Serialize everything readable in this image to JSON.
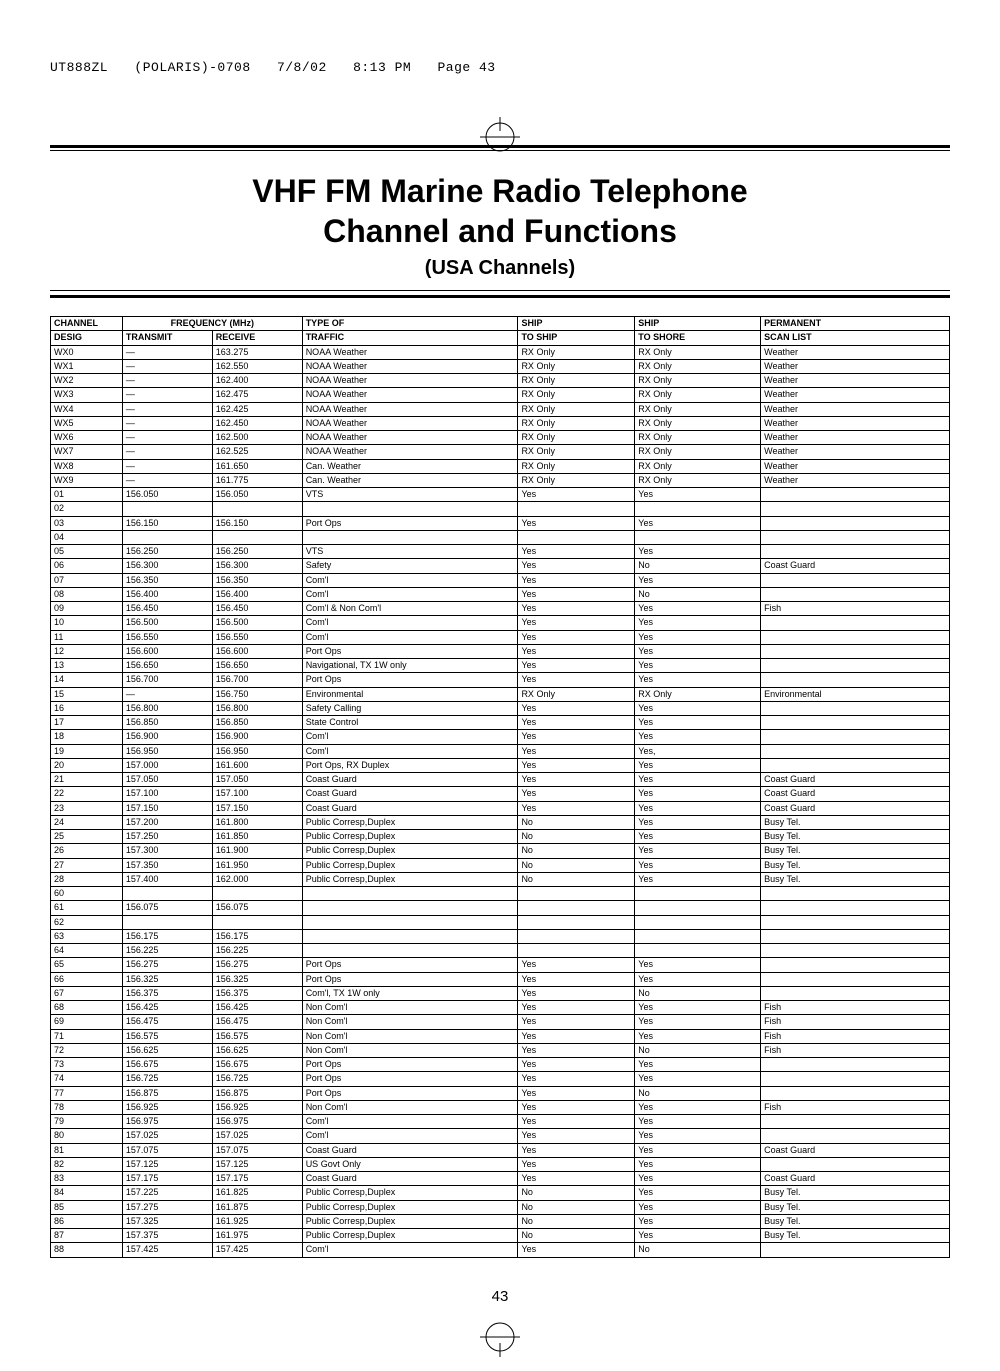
{
  "runheader": {
    "job": "UT888ZL",
    "project": "(POLARIS)-0708",
    "date": "7/8/02",
    "time": "8:13 PM",
    "page": "Page 43"
  },
  "title": {
    "line1": "VHF FM Marine Radio Telephone",
    "line2": "Channel and Functions",
    "sub": "(USA Channels)"
  },
  "columns": {
    "channel": "CHANNEL",
    "desig": "DESIG",
    "freq": "FREQUENCY (MHz)",
    "transmit": "TRANSMIT",
    "receive": "RECEIVE",
    "typeof": "TYPE OF",
    "traffic": "TRAFFIC",
    "ship1": "SHIP",
    "toship": "TO SHIP",
    "ship2": "SHIP",
    "toshore": "TO SHORE",
    "perm": "PERMANENT",
    "scan": "SCAN LIST"
  },
  "rows": [
    {
      "d": "WX0",
      "tx": "—",
      "rx": "163.275",
      "tr": "NOAA Weather",
      "sh": "RX Only",
      "so": "RX Only",
      "sc": "Weather"
    },
    {
      "d": "WX1",
      "tx": "—",
      "rx": "162.550",
      "tr": "NOAA Weather",
      "sh": "RX Only",
      "so": "RX Only",
      "sc": "Weather"
    },
    {
      "d": "WX2",
      "tx": "—",
      "rx": "162.400",
      "tr": "NOAA Weather",
      "sh": "RX Only",
      "so": "RX Only",
      "sc": "Weather"
    },
    {
      "d": "WX3",
      "tx": "—",
      "rx": "162.475",
      "tr": "NOAA Weather",
      "sh": "RX Only",
      "so": "RX Only",
      "sc": "Weather"
    },
    {
      "d": "WX4",
      "tx": "—",
      "rx": "162.425",
      "tr": "NOAA Weather",
      "sh": "RX Only",
      "so": "RX Only",
      "sc": "Weather"
    },
    {
      "d": "WX5",
      "tx": "—",
      "rx": "162.450",
      "tr": "NOAA Weather",
      "sh": "RX Only",
      "so": "RX Only",
      "sc": "Weather"
    },
    {
      "d": "WX6",
      "tx": "—",
      "rx": "162.500",
      "tr": "NOAA Weather",
      "sh": "RX Only",
      "so": "RX Only",
      "sc": "Weather"
    },
    {
      "d": "WX7",
      "tx": "—",
      "rx": "162.525",
      "tr": "NOAA Weather",
      "sh": "RX Only",
      "so": "RX Only",
      "sc": "Weather"
    },
    {
      "d": "WX8",
      "tx": "—",
      "rx": "161.650",
      "tr": "Can. Weather",
      "sh": "RX Only",
      "so": "RX Only",
      "sc": "Weather"
    },
    {
      "d": "WX9",
      "tx": "—",
      "rx": "161.775",
      "tr": "Can. Weather",
      "sh": "RX Only",
      "so": "RX Only",
      "sc": "Weather"
    },
    {
      "d": "01",
      "tx": "156.050",
      "rx": "156.050",
      "tr": "VTS",
      "sh": "Yes",
      "so": "Yes",
      "sc": ""
    },
    {
      "d": "02",
      "tx": "",
      "rx": "",
      "tr": "",
      "sh": "",
      "so": "",
      "sc": ""
    },
    {
      "d": "03",
      "tx": "156.150",
      "rx": "156.150",
      "tr": "Port Ops",
      "sh": "Yes",
      "so": "Yes",
      "sc": ""
    },
    {
      "d": "04",
      "tx": "",
      "rx": "",
      "tr": "",
      "sh": "",
      "so": "",
      "sc": ""
    },
    {
      "d": "05",
      "tx": "156.250",
      "rx": "156.250",
      "tr": "VTS",
      "sh": "Yes",
      "so": "Yes",
      "sc": ""
    },
    {
      "d": "06",
      "tx": "156.300",
      "rx": "156.300",
      "tr": "Safety",
      "sh": "Yes",
      "so": "No",
      "sc": "Coast Guard"
    },
    {
      "d": "07",
      "tx": "156.350",
      "rx": "156.350",
      "tr": "Com'l",
      "sh": "Yes",
      "so": "Yes",
      "sc": ""
    },
    {
      "d": "08",
      "tx": "156.400",
      "rx": "156.400",
      "tr": "Com'l",
      "sh": "Yes",
      "so": "No",
      "sc": ""
    },
    {
      "d": "09",
      "tx": "156.450",
      "rx": "156.450",
      "tr": "Com'l & Non Com'l",
      "sh": "Yes",
      "so": "Yes",
      "sc": "Fish"
    },
    {
      "d": "10",
      "tx": "156.500",
      "rx": "156.500",
      "tr": "Com'l",
      "sh": "Yes",
      "so": "Yes",
      "sc": ""
    },
    {
      "d": "11",
      "tx": "156.550",
      "rx": "156.550",
      "tr": "Com'l",
      "sh": "Yes",
      "so": "Yes",
      "sc": ""
    },
    {
      "d": "12",
      "tx": "156.600",
      "rx": "156.600",
      "tr": "Port Ops",
      "sh": "Yes",
      "so": "Yes",
      "sc": ""
    },
    {
      "d": "13",
      "tx": "156.650",
      "rx": "156.650",
      "tr": "Navigational, TX 1W only",
      "sh": "Yes",
      "so": "Yes",
      "sc": ""
    },
    {
      "d": "14",
      "tx": "156.700",
      "rx": "156.700",
      "tr": "Port Ops",
      "sh": "Yes",
      "so": "Yes",
      "sc": ""
    },
    {
      "d": "15",
      "tx": "—",
      "rx": "156.750",
      "tr": "Environmental",
      "sh": "RX Only",
      "so": "RX Only",
      "sc": "Environmental"
    },
    {
      "d": "16",
      "tx": "156.800",
      "rx": "156.800",
      "tr": "Safety Calling",
      "sh": "Yes",
      "so": "Yes",
      "sc": ""
    },
    {
      "d": "17",
      "tx": "156.850",
      "rx": "156.850",
      "tr": "State Control",
      "sh": "Yes",
      "so": "Yes",
      "sc": ""
    },
    {
      "d": "18",
      "tx": "156.900",
      "rx": "156.900",
      "tr": "Com'l",
      "sh": "Yes",
      "so": "Yes",
      "sc": ""
    },
    {
      "d": "19",
      "tx": "156.950",
      "rx": "156.950",
      "tr": "Com'l",
      "sh": "Yes",
      "so": "Yes,",
      "sc": ""
    },
    {
      "d": "20",
      "tx": "157.000",
      "rx": "161.600",
      "tr": "Port Ops, RX Duplex",
      "sh": "Yes",
      "so": "Yes",
      "sc": ""
    },
    {
      "d": "21",
      "tx": "157.050",
      "rx": "157.050",
      "tr": "Coast Guard",
      "sh": "Yes",
      "so": "Yes",
      "sc": "Coast Guard"
    },
    {
      "d": "22",
      "tx": "157.100",
      "rx": "157.100",
      "tr": "Coast Guard",
      "sh": "Yes",
      "so": "Yes",
      "sc": "Coast Guard"
    },
    {
      "d": "23",
      "tx": "157.150",
      "rx": "157.150",
      "tr": "Coast Guard",
      "sh": "Yes",
      "so": "Yes",
      "sc": "Coast Guard"
    },
    {
      "d": "24",
      "tx": "157.200",
      "rx": "161.800",
      "tr": "Public Corresp,Duplex",
      "sh": "No",
      "so": "Yes",
      "sc": "Busy Tel."
    },
    {
      "d": "25",
      "tx": "157.250",
      "rx": "161.850",
      "tr": "Public Corresp,Duplex",
      "sh": "No",
      "so": "Yes",
      "sc": "Busy Tel."
    },
    {
      "d": "26",
      "tx": "157.300",
      "rx": "161.900",
      "tr": "Public Corresp,Duplex",
      "sh": "No",
      "so": "Yes",
      "sc": "Busy Tel."
    },
    {
      "d": "27",
      "tx": "157.350",
      "rx": "161.950",
      "tr": "Public Corresp,Duplex",
      "sh": "No",
      "so": "Yes",
      "sc": "Busy Tel."
    },
    {
      "d": "28",
      "tx": "157.400",
      "rx": "162.000",
      "tr": "Public Corresp,Duplex",
      "sh": "No",
      "so": "Yes",
      "sc": "Busy Tel."
    },
    {
      "d": "60",
      "tx": "",
      "rx": "",
      "tr": "",
      "sh": "",
      "so": "",
      "sc": ""
    },
    {
      "d": "61",
      "tx": "156.075",
      "rx": "156.075",
      "tr": "",
      "sh": "",
      "so": "",
      "sc": ""
    },
    {
      "d": "62",
      "tx": "",
      "rx": "",
      "tr": "",
      "sh": "",
      "so": "",
      "sc": ""
    },
    {
      "d": "63",
      "tx": "156.175",
      "rx": "156.175",
      "tr": "",
      "sh": "",
      "so": "",
      "sc": ""
    },
    {
      "d": "64",
      "tx": "156.225",
      "rx": "156.225",
      "tr": "",
      "sh": "",
      "so": "",
      "sc": ""
    },
    {
      "d": "65",
      "tx": "156.275",
      "rx": "156.275",
      "tr": "Port Ops",
      "sh": "Yes",
      "so": "Yes",
      "sc": ""
    },
    {
      "d": "66",
      "tx": "156.325",
      "rx": "156.325",
      "tr": "Port Ops",
      "sh": "Yes",
      "so": "Yes",
      "sc": ""
    },
    {
      "d": "67",
      "tx": "156.375",
      "rx": "156.375",
      "tr": "Com'l, TX 1W only",
      "sh": "Yes",
      "so": "No",
      "sc": ""
    },
    {
      "d": "68",
      "tx": "156.425",
      "rx": "156.425",
      "tr": "Non Com'l",
      "sh": "Yes",
      "so": "Yes",
      "sc": "Fish"
    },
    {
      "d": "69",
      "tx": "156.475",
      "rx": "156.475",
      "tr": "Non Com'l",
      "sh": "Yes",
      "so": "Yes",
      "sc": "Fish"
    },
    {
      "d": "71",
      "tx": "156.575",
      "rx": "156.575",
      "tr": "Non Com'l",
      "sh": "Yes",
      "so": "Yes",
      "sc": "Fish"
    },
    {
      "d": "72",
      "tx": "156.625",
      "rx": "156.625",
      "tr": "Non Com'l",
      "sh": "Yes",
      "so": "No",
      "sc": "Fish"
    },
    {
      "d": "73",
      "tx": "156.675",
      "rx": "156.675",
      "tr": "Port Ops",
      "sh": "Yes",
      "so": "Yes",
      "sc": ""
    },
    {
      "d": "74",
      "tx": "156.725",
      "rx": "156.725",
      "tr": "Port Ops",
      "sh": "Yes",
      "so": "Yes",
      "sc": ""
    },
    {
      "d": "77",
      "tx": "156.875",
      "rx": "156.875",
      "tr": "Port Ops",
      "sh": "Yes",
      "so": "No",
      "sc": ""
    },
    {
      "d": "78",
      "tx": "156.925",
      "rx": "156.925",
      "tr": "Non Com'l",
      "sh": "Yes",
      "so": "Yes",
      "sc": "Fish"
    },
    {
      "d": "79",
      "tx": "156.975",
      "rx": "156.975",
      "tr": "Com'l",
      "sh": "Yes",
      "so": "Yes",
      "sc": ""
    },
    {
      "d": "80",
      "tx": "157.025",
      "rx": "157.025",
      "tr": "Com'l",
      "sh": "Yes",
      "so": "Yes",
      "sc": ""
    },
    {
      "d": "81",
      "tx": "157.075",
      "rx": "157.075",
      "tr": "Coast Guard",
      "sh": "Yes",
      "so": "Yes",
      "sc": "Coast Guard"
    },
    {
      "d": "82",
      "tx": "157.125",
      "rx": "157.125",
      "tr": "US Govt Only",
      "sh": "Yes",
      "so": "Yes",
      "sc": ""
    },
    {
      "d": "83",
      "tx": "157.175",
      "rx": "157.175",
      "tr": "Coast Guard",
      "sh": "Yes",
      "so": "Yes",
      "sc": "Coast Guard"
    },
    {
      "d": "84",
      "tx": "157.225",
      "rx": "161.825",
      "tr": "Public Corresp,Duplex",
      "sh": "No",
      "so": "Yes",
      "sc": "Busy Tel."
    },
    {
      "d": "85",
      "tx": "157.275",
      "rx": "161.875",
      "tr": "Public Corresp,Duplex",
      "sh": "No",
      "so": "Yes",
      "sc": "Busy Tel."
    },
    {
      "d": "86",
      "tx": "157.325",
      "rx": "161.925",
      "tr": "Public Corresp,Duplex",
      "sh": "No",
      "so": "Yes",
      "sc": "Busy Tel."
    },
    {
      "d": "87",
      "tx": "157.375",
      "rx": "161.975",
      "tr": "Public Corresp,Duplex",
      "sh": "No",
      "so": "Yes",
      "sc": "Busy Tel."
    },
    {
      "d": "88",
      "tx": "157.425",
      "rx": "157.425",
      "tr": "Com'l",
      "sh": "Yes",
      "so": "No",
      "sc": ""
    }
  ],
  "pagenum": "43",
  "style": {
    "widths": {
      "d": "8%",
      "tx": "10%",
      "rx": "10%",
      "tr": "24%",
      "sh": "13%",
      "so": "14%",
      "sc": "21%"
    }
  }
}
